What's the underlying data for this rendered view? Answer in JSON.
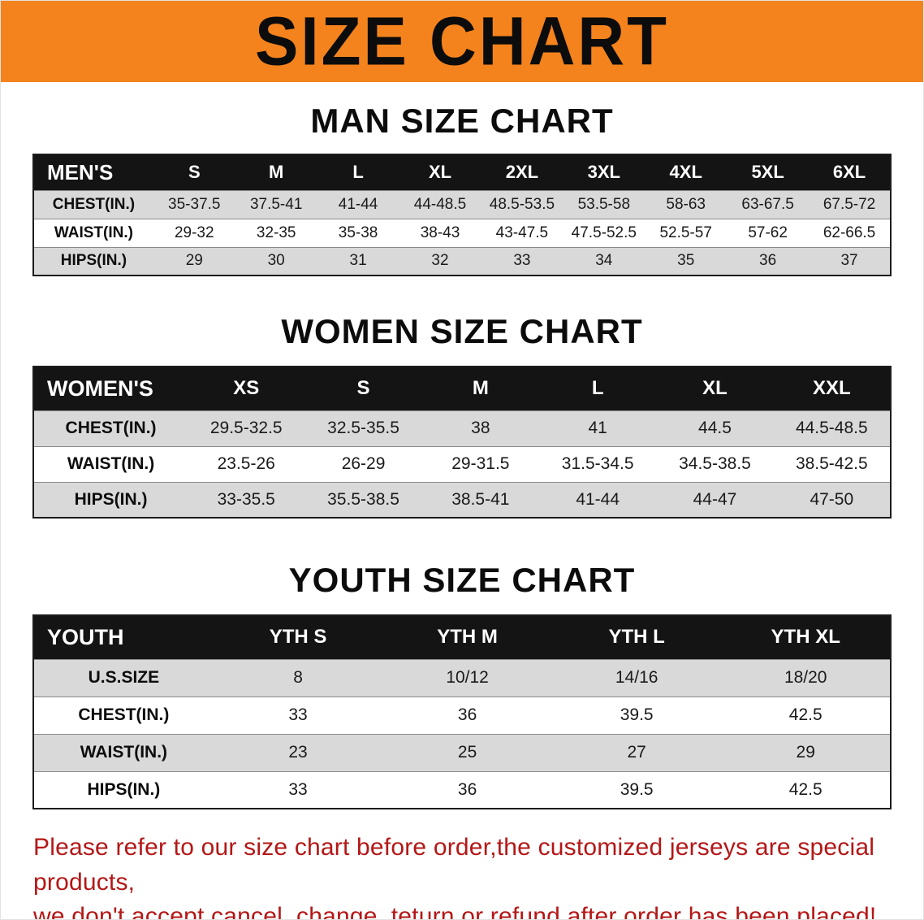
{
  "banner": {
    "title": "SIZE CHART",
    "bg_color": "#F4831D",
    "text_color": "#0c0c0c"
  },
  "chart_data": [
    {
      "type": "table",
      "title": "MAN SIZE CHART",
      "header": [
        "MEN'S",
        "S",
        "M",
        "L",
        "XL",
        "2XL",
        "3XL",
        "4XL",
        "5XL",
        "6XL"
      ],
      "rows": [
        [
          "CHEST(IN.)",
          "35-37.5",
          "37.5-41",
          "41-44",
          "44-48.5",
          "48.5-53.5",
          "53.5-58",
          "58-63",
          "63-67.5",
          "67.5-72"
        ],
        [
          "WAIST(IN.)",
          "29-32",
          "32-35",
          "35-38",
          "38-43",
          "43-47.5",
          "47.5-52.5",
          "52.5-57",
          "57-62",
          "62-66.5"
        ],
        [
          "HIPS(IN.)",
          "29",
          "30",
          "31",
          "32",
          "33",
          "34",
          "35",
          "36",
          "37"
        ]
      ]
    },
    {
      "type": "table",
      "title": "WOMEN SIZE CHART",
      "header": [
        "WOMEN'S",
        "XS",
        "S",
        "M",
        "L",
        "XL",
        "XXL"
      ],
      "rows": [
        [
          "CHEST(IN.)",
          "29.5-32.5",
          "32.5-35.5",
          "38",
          "41",
          "44.5",
          "44.5-48.5"
        ],
        [
          "WAIST(IN.)",
          "23.5-26",
          "26-29",
          "29-31.5",
          "31.5-34.5",
          "34.5-38.5",
          "38.5-42.5"
        ],
        [
          "HIPS(IN.)",
          "33-35.5",
          "35.5-38.5",
          "38.5-41",
          "41-44",
          "44-47",
          "47-50"
        ]
      ]
    },
    {
      "type": "table",
      "title": "YOUTH SIZE CHART",
      "header": [
        "YOUTH",
        "YTH S",
        "YTH M",
        "YTH L",
        "YTH XL"
      ],
      "rows": [
        [
          "U.S.SIZE",
          "8",
          "10/12",
          "14/16",
          "18/20"
        ],
        [
          "CHEST(IN.)",
          "33",
          "36",
          "39.5",
          "42.5"
        ],
        [
          "WAIST(IN.)",
          "23",
          "25",
          "27",
          "29"
        ],
        [
          "HIPS(IN.)",
          "33",
          "36",
          "39.5",
          "42.5"
        ]
      ]
    }
  ],
  "footer": {
    "line1": "Please refer to our size chart before order,the customized jerseys are special products,",
    "line2": "we don't accept cancel, change, teturn or refund after order has been placed!",
    "text_color": "#B41717"
  }
}
